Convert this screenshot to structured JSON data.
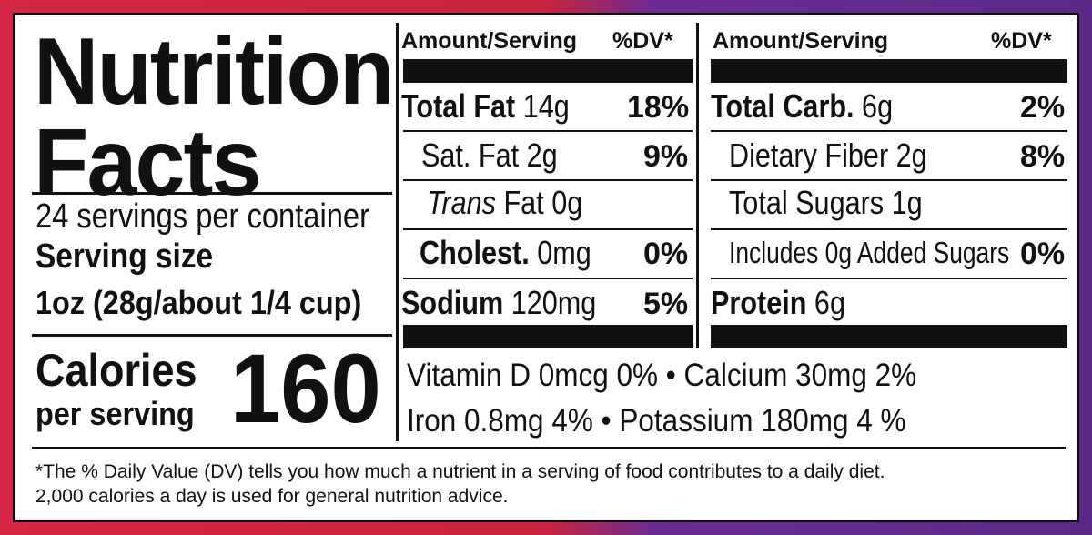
{
  "title_line1": "Nutrition",
  "title_line2": "Facts",
  "servings_per_container": "24 servings per container",
  "serving_size_label": "Serving size",
  "serving_size_value": "1oz (28g/about 1/4 cup)",
  "calories_label": "Calories",
  "calories_sublabel": "per serving",
  "calories_value": "160",
  "left_table": {
    "header_amount": "Amount/Serving",
    "header_dv": "%DV*",
    "rows": [
      {
        "name": "Total Fat",
        "amount": "14g",
        "dv": "18%"
      },
      {
        "name": "Sat. Fat",
        "amount": "2g",
        "dv": "9%"
      },
      {
        "name_italic": "Trans",
        "name": "Fat",
        "amount": "0g",
        "dv": ""
      },
      {
        "name": "Cholest.",
        "amount": "0mg",
        "dv": "0%"
      },
      {
        "name": "Sodium",
        "amount": "120mg",
        "dv": "5%"
      }
    ]
  },
  "right_table": {
    "header_amount": "Amount/Serving",
    "header_dv": "%DV*",
    "rows": [
      {
        "name": "Total Carb.",
        "amount": "6g",
        "dv": "2%"
      },
      {
        "name": "Dietary Fiber",
        "amount": "2g",
        "dv": "8%"
      },
      {
        "name": "Total Sugars",
        "amount": "1g",
        "dv": ""
      },
      {
        "name": "Includes 0g Added Sugars",
        "amount": "",
        "dv": "0%"
      },
      {
        "name": "Protein",
        "amount": "6g",
        "dv": ""
      }
    ]
  },
  "vitamins_line1": "Vitamin D 0mcg 0%  •  Calcium 30mg 2%",
  "vitamins_line2": "Iron 0.8mg 4%  •  Potassium 180mg 4 %",
  "footnote_line1": "*The % Daily Value (DV) tells you how much a nutrient in a serving of food contributes to a daily diet.",
  "footnote_line2": "2,000 calories a day is used for general nutrition advice.",
  "colors": {
    "frame_left": "#d72545",
    "frame_right": "#5b2a86",
    "ink": "#111111"
  }
}
